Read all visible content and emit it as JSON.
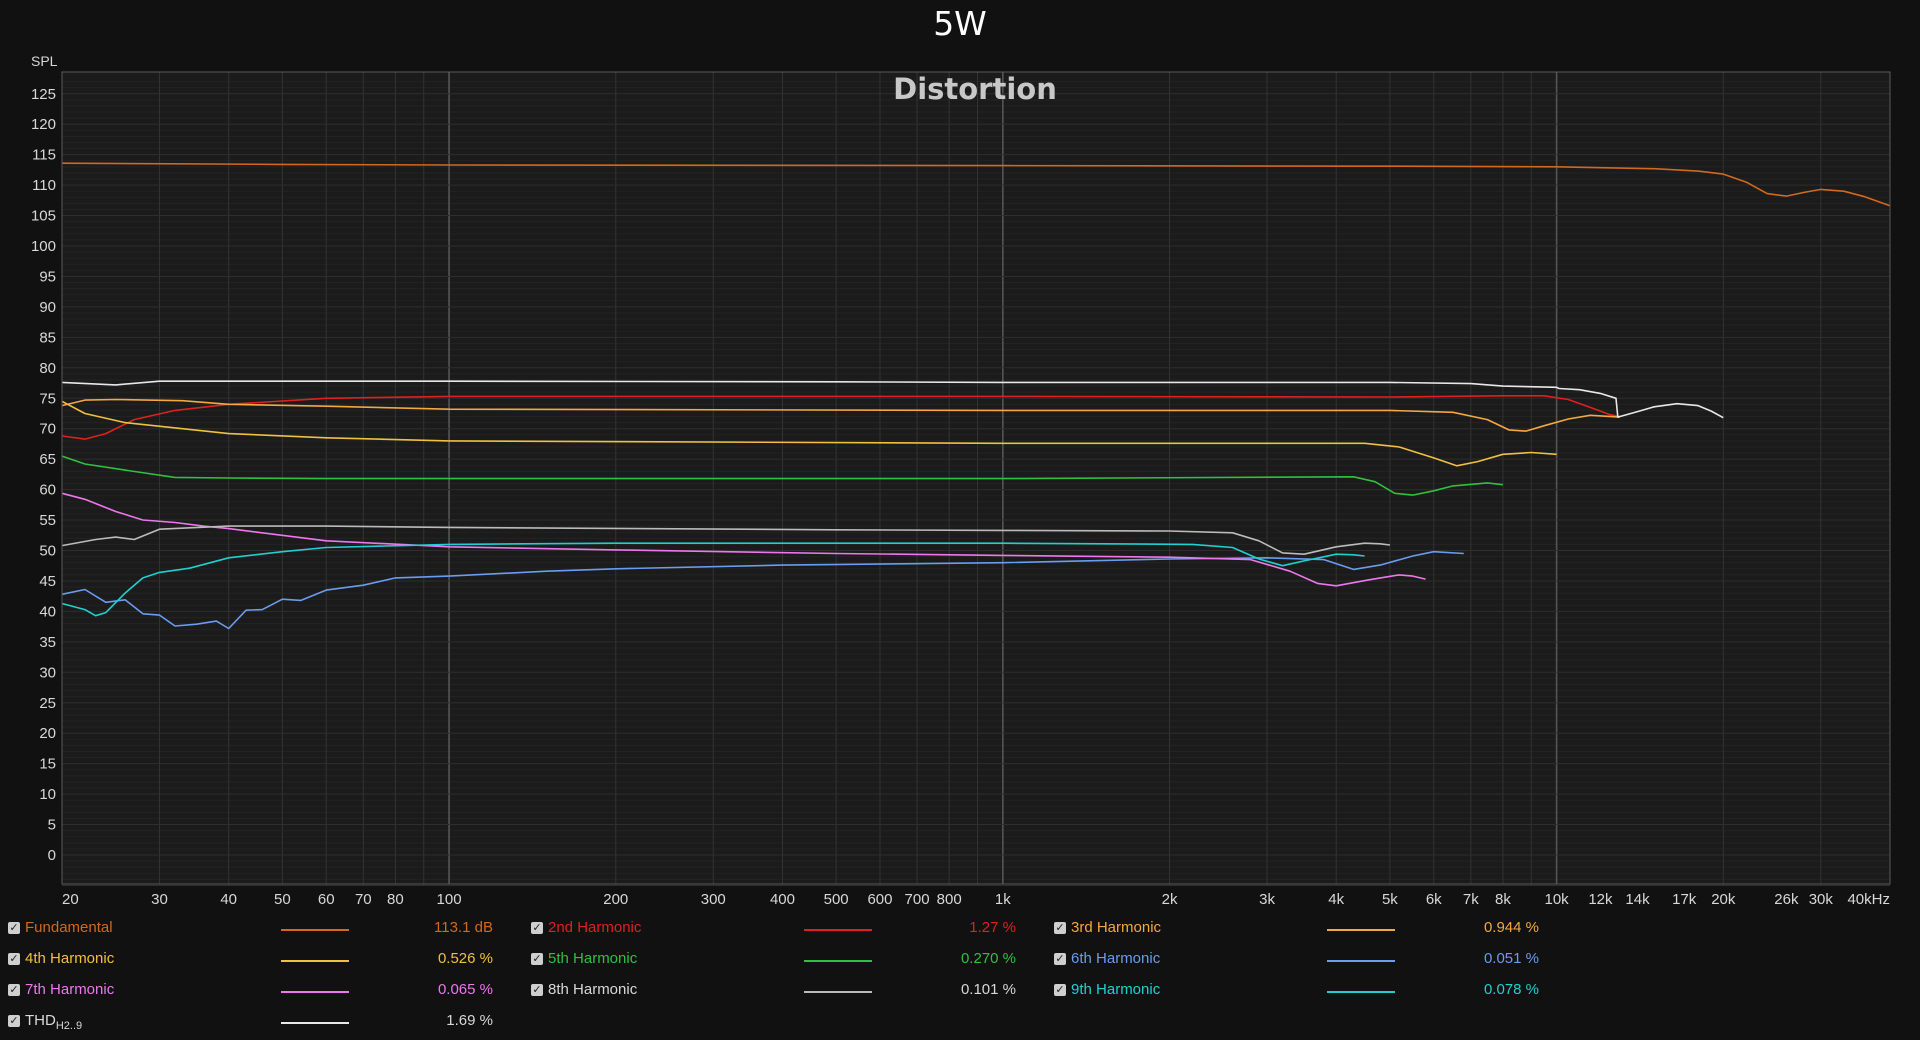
{
  "chart_data": {
    "type": "line",
    "title": "5W",
    "subtitle": "Distortion",
    "ylabel": "SPL",
    "xscale": "log",
    "xlim": [
      20,
      40000
    ],
    "ylim": [
      -5,
      128
    ],
    "grid": true,
    "legend_placement": "bottom",
    "y_ticks": [
      0,
      5,
      10,
      15,
      20,
      25,
      30,
      35,
      40,
      45,
      50,
      55,
      60,
      65,
      70,
      75,
      80,
      85,
      90,
      95,
      100,
      105,
      110,
      115,
      120,
      125
    ],
    "x_ticks": [
      {
        "v": 20,
        "label": "20"
      },
      {
        "v": 30,
        "label": "30"
      },
      {
        "v": 40,
        "label": "40"
      },
      {
        "v": 50,
        "label": "50"
      },
      {
        "v": 60,
        "label": "60"
      },
      {
        "v": 70,
        "label": "70"
      },
      {
        "v": 80,
        "label": "80"
      },
      {
        "v": 100,
        "label": "100"
      },
      {
        "v": 200,
        "label": "200"
      },
      {
        "v": 300,
        "label": "300"
      },
      {
        "v": 400,
        "label": "400"
      },
      {
        "v": 500,
        "label": "500"
      },
      {
        "v": 600,
        "label": "600"
      },
      {
        "v": 700,
        "label": "700"
      },
      {
        "v": 800,
        "label": "800"
      },
      {
        "v": 1000,
        "label": "1k"
      },
      {
        "v": 2000,
        "label": "2k"
      },
      {
        "v": 3000,
        "label": "3k"
      },
      {
        "v": 4000,
        "label": "4k"
      },
      {
        "v": 5000,
        "label": "5k"
      },
      {
        "v": 6000,
        "label": "6k"
      },
      {
        "v": 7000,
        "label": "7k"
      },
      {
        "v": 8000,
        "label": "8k"
      },
      {
        "v": 10000,
        "label": "10k"
      },
      {
        "v": 12000,
        "label": "12k"
      },
      {
        "v": 14000,
        "label": "14k"
      },
      {
        "v": 17000,
        "label": "17k"
      },
      {
        "v": 20000,
        "label": "20k"
      },
      {
        "v": 26000,
        "label": "26k"
      },
      {
        "v": 30000,
        "label": "30k"
      },
      {
        "v": 40000,
        "label": "40kHz"
      }
    ],
    "series": [
      {
        "name": "Fundamental",
        "color": "#d2691e",
        "value": "113.1 dB",
        "points": [
          [
            20,
            113.6
          ],
          [
            50,
            113.4
          ],
          [
            100,
            113.3
          ],
          [
            1000,
            113.2
          ],
          [
            5000,
            113.1
          ],
          [
            10000,
            113.0
          ],
          [
            15000,
            112.7
          ],
          [
            18000,
            112.3
          ],
          [
            20000,
            111.8
          ],
          [
            22000,
            110.5
          ],
          [
            24000,
            108.6
          ],
          [
            26000,
            108.2
          ],
          [
            28000,
            108.8
          ],
          [
            30000,
            109.3
          ],
          [
            33000,
            109.0
          ],
          [
            36000,
            108.1
          ],
          [
            40000,
            106.6
          ]
        ]
      },
      {
        "name": "2nd Harmonic",
        "color": "#e02020",
        "value": "1.27 %",
        "points": [
          [
            20,
            68.8
          ],
          [
            22,
            68.3
          ],
          [
            24,
            69.2
          ],
          [
            27,
            71.5
          ],
          [
            32,
            73.0
          ],
          [
            40,
            74.0
          ],
          [
            60,
            75.0
          ],
          [
            100,
            75.3
          ],
          [
            1000,
            75.3
          ],
          [
            5000,
            75.2
          ],
          [
            8000,
            75.4
          ],
          [
            9500,
            75.4
          ],
          [
            10500,
            74.8
          ],
          [
            11500,
            73.5
          ],
          [
            12500,
            72.3
          ],
          [
            13000,
            72.0
          ]
        ]
      },
      {
        "name": "3rd Harmonic",
        "color": "#f5a742",
        "value": "0.944 %",
        "points": [
          [
            20,
            73.8
          ],
          [
            22,
            74.7
          ],
          [
            25,
            74.8
          ],
          [
            33,
            74.6
          ],
          [
            40,
            74.0
          ],
          [
            60,
            73.7
          ],
          [
            100,
            73.2
          ],
          [
            1000,
            73.0
          ],
          [
            5000,
            73.0
          ],
          [
            6500,
            72.7
          ],
          [
            7500,
            71.5
          ],
          [
            8200,
            69.8
          ],
          [
            8800,
            69.6
          ],
          [
            9500,
            70.5
          ],
          [
            10500,
            71.6
          ],
          [
            11500,
            72.2
          ],
          [
            13000,
            71.9
          ]
        ]
      },
      {
        "name": "4th Harmonic",
        "color": "#f0c040",
        "value": "0.526 %",
        "points": [
          [
            20,
            74.5
          ],
          [
            22,
            72.5
          ],
          [
            26,
            71.0
          ],
          [
            33,
            70.0
          ],
          [
            40,
            69.2
          ],
          [
            60,
            68.5
          ],
          [
            100,
            68.0
          ],
          [
            1000,
            67.6
          ],
          [
            4500,
            67.6
          ],
          [
            5200,
            67.0
          ],
          [
            6000,
            65.2
          ],
          [
            6600,
            63.9
          ],
          [
            7200,
            64.6
          ],
          [
            8000,
            65.8
          ],
          [
            9000,
            66.1
          ],
          [
            10000,
            65.8
          ]
        ]
      },
      {
        "name": "5th Harmonic",
        "color": "#30c040",
        "value": "0.270 %",
        "points": [
          [
            20,
            65.5
          ],
          [
            22,
            64.2
          ],
          [
            26,
            63.2
          ],
          [
            32,
            62.0
          ],
          [
            40,
            61.9
          ],
          [
            60,
            61.8
          ],
          [
            100,
            61.8
          ],
          [
            1000,
            61.8
          ],
          [
            4300,
            62.1
          ],
          [
            4700,
            61.3
          ],
          [
            5100,
            59.4
          ],
          [
            5500,
            59.1
          ],
          [
            6000,
            59.8
          ],
          [
            6500,
            60.6
          ],
          [
            7500,
            61.1
          ],
          [
            8000,
            60.8
          ]
        ]
      },
      {
        "name": "6th Harmonic",
        "color": "#6a9cf0",
        "value": "0.051 %",
        "points": [
          [
            20,
            42.8
          ],
          [
            22,
            43.6
          ],
          [
            24,
            41.5
          ],
          [
            26,
            41.9
          ],
          [
            28,
            39.6
          ],
          [
            30,
            39.4
          ],
          [
            32,
            37.6
          ],
          [
            35,
            37.9
          ],
          [
            38,
            38.4
          ],
          [
            40,
            37.2
          ],
          [
            43,
            40.2
          ],
          [
            46,
            40.3
          ],
          [
            50,
            42.0
          ],
          [
            54,
            41.8
          ],
          [
            60,
            43.5
          ],
          [
            70,
            44.3
          ],
          [
            80,
            45.5
          ],
          [
            100,
            45.8
          ],
          [
            150,
            46.6
          ],
          [
            200,
            47.0
          ],
          [
            400,
            47.6
          ],
          [
            1000,
            48.0
          ],
          [
            2000,
            48.6
          ],
          [
            3000,
            48.8
          ],
          [
            3800,
            48.5
          ],
          [
            4300,
            46.9
          ],
          [
            4800,
            47.6
          ],
          [
            5500,
            49.1
          ],
          [
            6000,
            49.8
          ],
          [
            6800,
            49.5
          ]
        ]
      },
      {
        "name": "7th Harmonic",
        "color": "#ee77ee",
        "value": "0.065 %",
        "points": [
          [
            20,
            59.4
          ],
          [
            22,
            58.4
          ],
          [
            25,
            56.4
          ],
          [
            28,
            55.0
          ],
          [
            32,
            54.6
          ],
          [
            36,
            54.0
          ],
          [
            40,
            53.6
          ],
          [
            60,
            51.6
          ],
          [
            100,
            50.6
          ],
          [
            200,
            50.1
          ],
          [
            500,
            49.5
          ],
          [
            1000,
            49.2
          ],
          [
            2000,
            48.9
          ],
          [
            2800,
            48.5
          ],
          [
            3300,
            46.6
          ],
          [
            3700,
            44.6
          ],
          [
            4000,
            44.2
          ],
          [
            4600,
            45.2
          ],
          [
            5200,
            46.0
          ],
          [
            5500,
            45.8
          ],
          [
            5800,
            45.3
          ]
        ]
      },
      {
        "name": "8th Harmonic",
        "color": "#bbbbbb",
        "value": "0.101 %",
        "points": [
          [
            20,
            50.8
          ],
          [
            23,
            51.8
          ],
          [
            25,
            52.2
          ],
          [
            27,
            51.8
          ],
          [
            30,
            53.5
          ],
          [
            40,
            54.0
          ],
          [
            60,
            54.0
          ],
          [
            100,
            53.8
          ],
          [
            500,
            53.4
          ],
          [
            1000,
            53.3
          ],
          [
            2000,
            53.2
          ],
          [
            2600,
            52.9
          ],
          [
            2900,
            51.6
          ],
          [
            3200,
            49.6
          ],
          [
            3500,
            49.4
          ],
          [
            4000,
            50.6
          ],
          [
            4500,
            51.2
          ],
          [
            4800,
            51.1
          ],
          [
            5000,
            50.9
          ]
        ]
      },
      {
        "name": "9th Harmonic",
        "color": "#20d0d0",
        "value": "0.078 %",
        "points": [
          [
            20,
            41.3
          ],
          [
            22,
            40.3
          ],
          [
            23,
            39.3
          ],
          [
            24,
            39.8
          ],
          [
            26,
            43.0
          ],
          [
            28,
            45.5
          ],
          [
            30,
            46.4
          ],
          [
            34,
            47.1
          ],
          [
            40,
            48.8
          ],
          [
            50,
            49.8
          ],
          [
            60,
            50.5
          ],
          [
            100,
            51.0
          ],
          [
            200,
            51.2
          ],
          [
            1000,
            51.2
          ],
          [
            2200,
            51.0
          ],
          [
            2600,
            50.5
          ],
          [
            2900,
            48.6
          ],
          [
            3200,
            47.5
          ],
          [
            3500,
            48.3
          ],
          [
            4000,
            49.4
          ],
          [
            4300,
            49.3
          ],
          [
            4500,
            49.1
          ]
        ]
      },
      {
        "name": "THD",
        "sub": "H2..9",
        "color": "#e8e8e8",
        "value": "1.69 %",
        "points": [
          [
            20,
            77.6
          ],
          [
            25,
            77.2
          ],
          [
            30,
            77.8
          ],
          [
            60,
            77.8
          ],
          [
            100,
            77.8
          ],
          [
            500,
            77.7
          ],
          [
            1000,
            77.6
          ],
          [
            3000,
            77.6
          ],
          [
            5000,
            77.6
          ],
          [
            7000,
            77.4
          ],
          [
            8000,
            77.0
          ],
          [
            10000,
            76.8
          ],
          [
            10100,
            76.6
          ],
          [
            11000,
            76.4
          ],
          [
            12000,
            75.8
          ],
          [
            12800,
            75.0
          ],
          [
            12900,
            71.9
          ],
          [
            14000,
            72.8
          ],
          [
            15000,
            73.6
          ],
          [
            16500,
            74.1
          ],
          [
            18000,
            73.8
          ],
          [
            19000,
            72.9
          ],
          [
            20000,
            71.8
          ]
        ]
      }
    ]
  }
}
